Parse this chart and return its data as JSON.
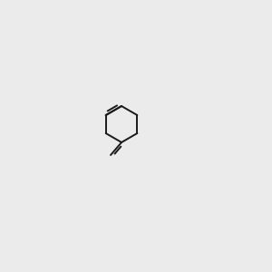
{
  "background_color": "#ebebeb",
  "figsize": [
    3.0,
    3.0
  ],
  "dpi": 100,
  "bond_color": "#1a1a1a",
  "bond_lw": 1.3,
  "N_color": "#0000ff",
  "O_color": "#ff0000",
  "C_color": "#1a1a1a",
  "font_size": 7.5
}
